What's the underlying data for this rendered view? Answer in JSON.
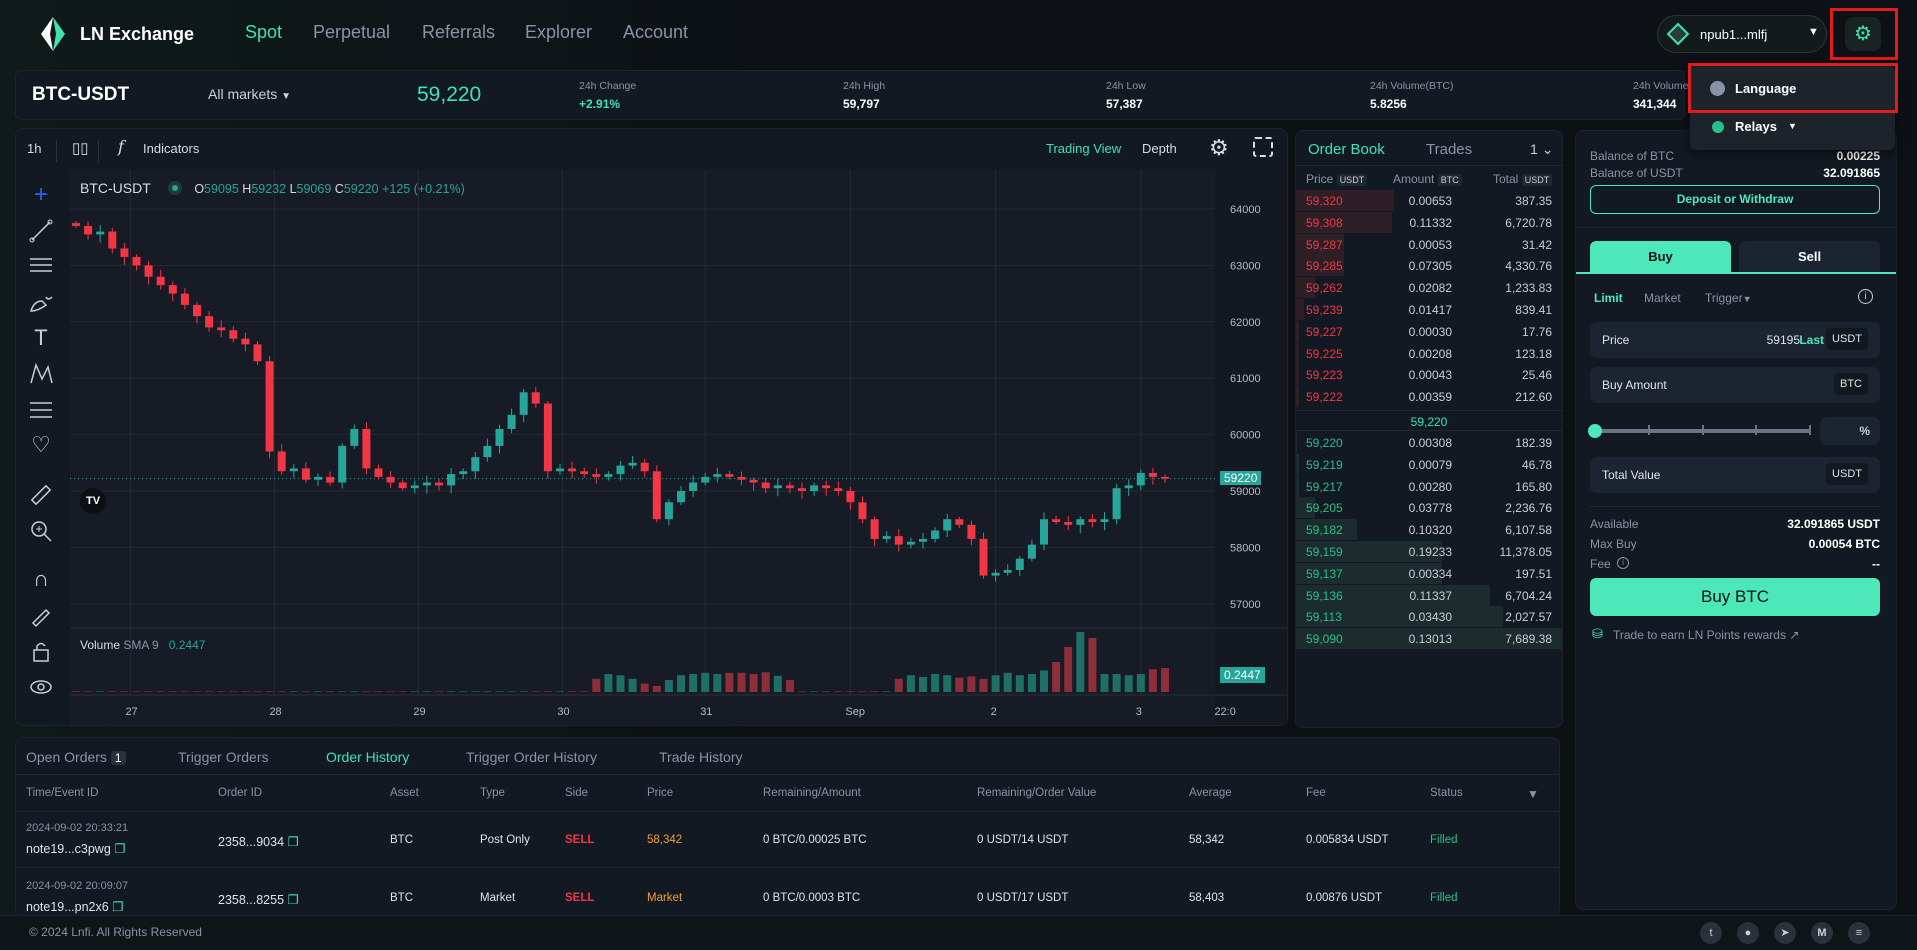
{
  "header": {
    "logo": "LN Exchange",
    "nav": [
      "Spot",
      "Perpetual",
      "Referrals",
      "Explorer",
      "Account"
    ],
    "wallet": "npub1...mlfj"
  },
  "settings_menu": {
    "items": [
      "Language",
      "Relays"
    ]
  },
  "ticker": {
    "pair": "BTC-USDT",
    "markets": "All markets",
    "price": "59,220",
    "stats": [
      {
        "label": "24h Change",
        "value": "+2.91%"
      },
      {
        "label": "24h High",
        "value": "59,797"
      },
      {
        "label": "24h Low",
        "value": "57,387"
      },
      {
        "label": "24h Volume(BTC)",
        "value": "5.8256"
      },
      {
        "label": "24h Volume",
        "value": "341,344"
      }
    ]
  },
  "chart_toolbar": {
    "interval": "1h",
    "indicators": "Indicators",
    "trading_view": "Trading View",
    "depth": "Depth"
  },
  "chart_legend": {
    "symbol": "BTC-USDT",
    "o_label": "O",
    "o": "59095",
    "h_label": "H",
    "h": "59232",
    "l_label": "L",
    "l": "59069",
    "c_label": "C",
    "c": "59220",
    "change": "+125 (+0.21%)",
    "volume_label": "Volume",
    "sma": "SMA 9",
    "volume_value": "0.2447",
    "last_price_tag": "59220"
  },
  "chart_data": {
    "type": "candlestick",
    "title": "BTC-USDT",
    "ylim": [
      56500,
      64800
    ],
    "y_ticks": [
      "64000",
      "63000",
      "62000",
      "61000",
      "60000",
      "59000",
      "58000",
      "57000"
    ],
    "x_ticks": [
      {
        "label": "27",
        "index": 4.5
      },
      {
        "label": "28",
        "index": 16.4
      },
      {
        "label": "29",
        "index": 28.3
      },
      {
        "label": "30",
        "index": 40.2
      },
      {
        "label": "31",
        "index": 52
      },
      {
        "label": "Sep",
        "index": 64
      },
      {
        "label": "2",
        "index": 76
      },
      {
        "label": "3",
        "index": 88
      },
      {
        "label": "22:0",
        "index": 94.5
      }
    ],
    "close": [
      63700,
      63550,
      63600,
      63300,
      63150,
      63000,
      62800,
      62650,
      62500,
      62300,
      62100,
      61900,
      61850,
      61700,
      61600,
      61300,
      59700,
      59350,
      59400,
      59200,
      59250,
      59150,
      59800,
      60100,
      59400,
      59250,
      59150,
      59050,
      59100,
      59150,
      59100,
      59300,
      59350,
      59600,
      59800,
      60100,
      60350,
      60750,
      60550,
      59350,
      59400,
      59350,
      59300,
      59250,
      59300,
      59450,
      59500,
      59350,
      58500,
      58800,
      59000,
      59150,
      59250,
      59300,
      59250,
      59200,
      59150,
      59050,
      59100,
      59050,
      59000,
      59100,
      59050,
      59000,
      58800,
      58500,
      58150,
      58200,
      58050,
      58100,
      58150,
      58300,
      58500,
      58400,
      58150,
      57500,
      57550,
      57600,
      57800,
      58050,
      58500,
      58450,
      58400,
      58500,
      58450,
      58500,
      59050,
      59100,
      59320,
      59250,
      59220
    ],
    "volume": [
      0.01,
      0.01,
      0.01,
      0.01,
      0.01,
      0.01,
      0.01,
      0.01,
      0.01,
      0.01,
      0.01,
      0.01,
      0.01,
      0.01,
      0.01,
      0.01,
      0.01,
      0.01,
      0.01,
      0.01,
      0.01,
      0.01,
      0.01,
      0.01,
      0.01,
      0.01,
      0.01,
      0.01,
      0.01,
      0.01,
      0.01,
      0.01,
      0.01,
      0.01,
      0.01,
      0.01,
      0.01,
      0.01,
      0.01,
      0.01,
      0.01,
      0.01,
      0.01,
      0.22,
      0.3,
      0.28,
      0.22,
      0.14,
      0.1,
      0.2,
      0.28,
      0.3,
      0.32,
      0.3,
      0.32,
      0.32,
      0.3,
      0.33,
      0.27,
      0.2,
      0.01,
      0.01,
      0.01,
      0.01,
      0.01,
      0.01,
      0.01,
      0.01,
      0.22,
      0.28,
      0.25,
      0.3,
      0.28,
      0.24,
      0.26,
      0.22,
      0.28,
      0.32,
      0.28,
      0.3,
      0.36,
      0.5,
      0.75,
      1.0,
      0.9,
      0.3,
      0.3,
      0.28,
      0.3,
      0.38,
      0.4
    ]
  },
  "order_book": {
    "tabs": [
      "Order Book",
      "Trades"
    ],
    "precision": "1",
    "headers": {
      "price": "Price",
      "price_unit": "USDT",
      "amount": "Amount",
      "amount_unit": "BTC",
      "total": "Total",
      "total_unit": "USDT"
    },
    "asks": [
      {
        "p": "59,320",
        "a": "0.00653",
        "t": "387.35",
        "d": 0.37
      },
      {
        "p": "59,308",
        "a": "0.11332",
        "t": "6,720.78",
        "d": 0.36
      },
      {
        "p": "59,287",
        "a": "0.00053",
        "t": "31.42",
        "d": 0.18
      },
      {
        "p": "59,285",
        "a": "0.07305",
        "t": "4,330.76",
        "d": 0.18
      },
      {
        "p": "59,262",
        "a": "0.02082",
        "t": "1,233.83",
        "d": 0.07
      },
      {
        "p": "59,239",
        "a": "0.01417",
        "t": "839.41",
        "d": 0.03
      },
      {
        "p": "59,227",
        "a": "0.00030",
        "t": "17.76",
        "d": 0.01
      },
      {
        "p": "59,225",
        "a": "0.00208",
        "t": "123.18",
        "d": 0.01
      },
      {
        "p": "59,223",
        "a": "0.00043",
        "t": "25.46",
        "d": 0.01
      },
      {
        "p": "59,222",
        "a": "0.00359",
        "t": "212.60",
        "d": 0.01
      }
    ],
    "mid": "59,220",
    "bids": [
      {
        "p": "59,220",
        "a": "0.00308",
        "t": "182.39",
        "d": 0.005
      },
      {
        "p": "59,219",
        "a": "0.00079",
        "t": "46.78",
        "d": 0.01
      },
      {
        "p": "59,217",
        "a": "0.00280",
        "t": "165.80",
        "d": 0.01
      },
      {
        "p": "59,205",
        "a": "0.03778",
        "t": "2,236.76",
        "d": 0.07
      },
      {
        "p": "59,182",
        "a": "0.10320",
        "t": "6,107.58",
        "d": 0.23
      },
      {
        "p": "59,159",
        "a": "0.19233",
        "t": "11,378.05",
        "d": 0.55
      },
      {
        "p": "59,137",
        "a": "0.00334",
        "t": "197.51",
        "d": 0.55
      },
      {
        "p": "59,136",
        "a": "0.11337",
        "t": "6,704.24",
        "d": 0.73
      },
      {
        "p": "59,113",
        "a": "0.03430",
        "t": "2,027.57",
        "d": 0.78
      },
      {
        "p": "59,090",
        "a": "0.13013",
        "t": "7,689.38",
        "d": 1.0
      }
    ]
  },
  "trade_panel": {
    "balance_btc_label": "Balance of BTC",
    "balance_btc": "0.00225",
    "balance_usdt_label": "Balance of USDT",
    "balance_usdt": "32.091865",
    "deposit": "Deposit or Withdraw",
    "buy_tab": "Buy",
    "sell_tab": "Sell",
    "order_types": [
      "Limit",
      "Market",
      "Trigger"
    ],
    "price_label": "Price",
    "price_value": "59195",
    "last": "Last",
    "usdt": "USDT",
    "amount_label": "Buy Amount",
    "btc": "BTC",
    "percent": "%",
    "slider_value": 0,
    "total_label": "Total Value",
    "available_label": "Available",
    "available": "32.091865 USDT",
    "maxbuy_label": "Max Buy",
    "maxbuy": "0.00054 BTC",
    "fee_label": "Fee",
    "fee": "--",
    "buy_button": "Buy BTC",
    "rewards": "Trade to earn LN Points rewards"
  },
  "orders": {
    "tabs": [
      "Open Orders",
      "Trigger Orders",
      "Order History",
      "Trigger Order History",
      "Trade History"
    ],
    "open_count": "1",
    "columns": [
      "Time/Event ID",
      "Order ID",
      "Asset",
      "Type",
      "Side",
      "Price",
      "Remaining/Amount",
      "Remaining/Order Value",
      "Average",
      "Fee",
      "Status"
    ],
    "rows": [
      {
        "time": "2024-09-02 20:33:21",
        "event": "note19...c3pwg",
        "id": "2358...9034",
        "asset": "BTC",
        "type": "Post Only",
        "side": "SELL",
        "price": "58,342",
        "rem_amount": "0 BTC/0.00025 BTC",
        "rem_value": "0 USDT/14 USDT",
        "avg": "58,342",
        "fee": "0.005834 USDT",
        "status": "Filled"
      },
      {
        "time": "2024-09-02 20:09:07",
        "event": "note19...pn2x6",
        "id": "2358...8255",
        "asset": "BTC",
        "type": "Market",
        "side": "SELL",
        "price": "Market",
        "rem_amount": "0 BTC/0.0003 BTC",
        "rem_value": "0 USDT/17 USDT",
        "avg": "58,403",
        "fee": "0.00876 USDT",
        "status": "Filled"
      }
    ]
  },
  "footer": {
    "copyright": "© 2024 Lnfi. All Rights Reserved",
    "social": [
      "twitter-icon",
      "github-icon",
      "telegram-icon",
      "medium-icon",
      "gitbook-icon"
    ]
  },
  "colors": {
    "accent": "#4ce8b9",
    "up": "#26a69a",
    "down": "#f23645"
  }
}
